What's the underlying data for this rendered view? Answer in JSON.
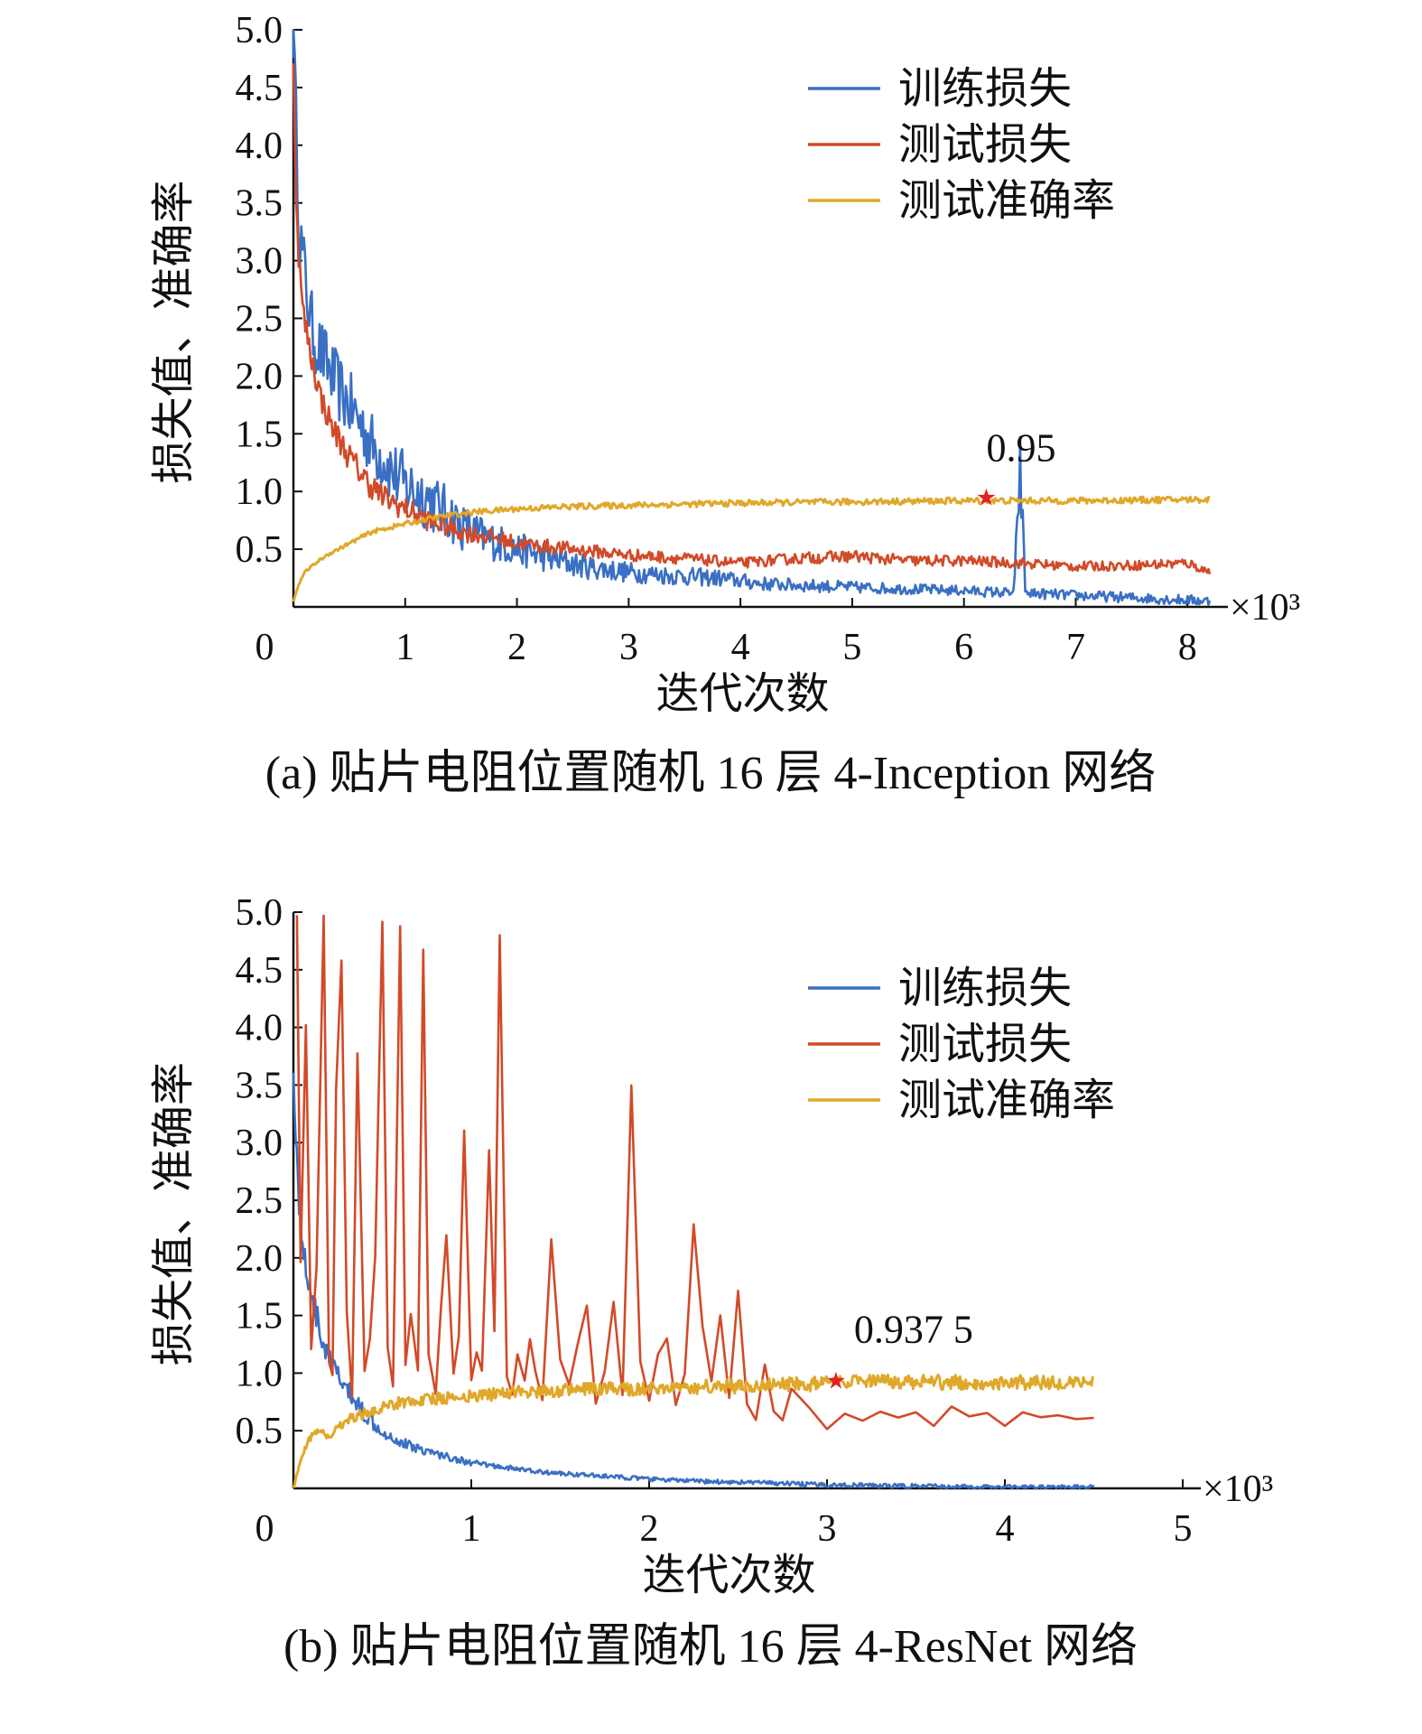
{
  "chart_data": [
    {
      "id": "a",
      "type": "line",
      "caption": "(a) 贴片电阻位置随机 16 层 4-Inception 网络",
      "xlabel": "迭代次数",
      "ylabel": "损失值、准确率",
      "x_unit_label": "×10³",
      "xlim": [
        0,
        8.2
      ],
      "ylim": [
        0,
        5.0
      ],
      "x_ticks": [
        "0",
        "1",
        "2",
        "3",
        "4",
        "5",
        "6",
        "7",
        "8"
      ],
      "y_ticks": [
        "0.5",
        "1.0",
        "1.5",
        "2.0",
        "2.5",
        "3.0",
        "3.5",
        "4.0",
        "4.5",
        "5.0"
      ],
      "legend": [
        "训练损失",
        "测试损失",
        "测试准确率"
      ],
      "annotation": {
        "text": "0.95",
        "x": 6.2,
        "y": 0.95
      },
      "series": [
        {
          "name": "训练损失",
          "color": "#3a6fc4",
          "x": [
            0,
            0.05,
            0.1,
            0.15,
            0.2,
            0.3,
            0.4,
            0.5,
            0.6,
            0.7,
            0.8,
            0.9,
            1.0,
            1.1,
            1.2,
            1.3,
            1.4,
            1.5,
            1.7,
            2.0,
            2.3,
            2.6,
            3.0,
            3.4,
            3.8,
            4.2,
            5.0,
            6.0,
            6.45,
            6.5,
            6.55,
            7.0,
            7.5,
            8.0,
            8.2
          ],
          "y": [
            5.0,
            3.3,
            2.9,
            2.5,
            2.3,
            2.1,
            1.9,
            1.75,
            1.6,
            1.4,
            1.3,
            1.15,
            1.05,
            1.0,
            0.95,
            0.85,
            0.8,
            0.7,
            0.6,
            0.5,
            0.42,
            0.35,
            0.3,
            0.27,
            0.25,
            0.2,
            0.17,
            0.14,
            0.12,
            1.25,
            0.12,
            0.1,
            0.08,
            0.06,
            0.05
          ],
          "noise": 0.3
        },
        {
          "name": "测试损失",
          "color": "#d24a28",
          "x": [
            0,
            0.03,
            0.08,
            0.15,
            0.25,
            0.35,
            0.5,
            0.65,
            0.8,
            1.0,
            1.2,
            1.5,
            1.8,
            2.0,
            2.5,
            3.0,
            3.5,
            4.0,
            4.5,
            5.0,
            5.5,
            6.0,
            6.5,
            7.0,
            7.5,
            8.0,
            8.2
          ],
          "y": [
            4.7,
            3.3,
            2.6,
            2.2,
            1.8,
            1.55,
            1.3,
            1.1,
            0.95,
            0.85,
            0.75,
            0.65,
            0.6,
            0.55,
            0.5,
            0.45,
            0.42,
            0.38,
            0.42,
            0.44,
            0.4,
            0.4,
            0.38,
            0.35,
            0.36,
            0.38,
            0.3
          ],
          "noise": 0.12
        },
        {
          "name": "测试准确率",
          "color": "#e0a82a",
          "x": [
            0,
            0.05,
            0.1,
            0.2,
            0.3,
            0.5,
            0.7,
            1.0,
            1.3,
            1.6,
            2.0,
            2.5,
            3.0,
            3.5,
            4.0,
            5.0,
            6.0,
            7.0,
            8.0,
            8.2
          ],
          "y": [
            0.05,
            0.2,
            0.3,
            0.38,
            0.45,
            0.55,
            0.65,
            0.72,
            0.78,
            0.82,
            0.85,
            0.87,
            0.88,
            0.89,
            0.9,
            0.91,
            0.92,
            0.92,
            0.93,
            0.93
          ],
          "noise": 0.03
        }
      ]
    },
    {
      "id": "b",
      "type": "line",
      "caption": "(b) 贴片电阻位置随机 16 层 4-ResNet 网络",
      "xlabel": "迭代次数",
      "ylabel": "损失值、准确率",
      "x_unit_label": "×10³",
      "xlim": [
        0,
        5
      ],
      "ylim": [
        0,
        5.0
      ],
      "x_ticks": [
        "0",
        "1",
        "2",
        "3",
        "4",
        "5"
      ],
      "y_ticks": [
        "0.5",
        "1.0",
        "1.5",
        "2.0",
        "2.5",
        "3.0",
        "3.5",
        "4.0",
        "4.5",
        "5.0"
      ],
      "legend": [
        "训练损失",
        "测试损失",
        "测试准确率"
      ],
      "annotation": {
        "text": "0.937 5",
        "x": 3.05,
        "y": 0.9375
      },
      "series": [
        {
          "name": "训练损失",
          "color": "#3a6fc4",
          "x": [
            0,
            0.03,
            0.06,
            0.1,
            0.15,
            0.2,
            0.3,
            0.4,
            0.5,
            0.6,
            0.8,
            1.0,
            1.2,
            1.4,
            1.6,
            1.8,
            2.0,
            2.3,
            2.6,
            2.8,
            3.0,
            3.5,
            4.0,
            4.5
          ],
          "y": [
            3.6,
            2.5,
            2.0,
            1.7,
            1.35,
            1.1,
            0.85,
            0.65,
            0.5,
            0.4,
            0.3,
            0.22,
            0.18,
            0.14,
            0.12,
            0.1,
            0.08,
            0.06,
            0.05,
            0.04,
            0.03,
            0.02,
            0.01,
            0.01
          ],
          "noise": 0.12
        },
        {
          "name": "测试损失",
          "color": "#d24a28",
          "x": [
            0.02,
            0.04,
            0.07,
            0.1,
            0.13,
            0.17,
            0.2,
            0.22,
            0.24,
            0.27,
            0.3,
            0.33,
            0.36,
            0.4,
            0.43,
            0.46,
            0.5,
            0.53,
            0.56,
            0.6,
            0.63,
            0.66,
            0.7,
            0.73,
            0.76,
            0.8,
            0.83,
            0.86,
            0.9,
            0.93,
            0.96,
            1.0,
            1.03,
            1.06,
            1.1,
            1.13,
            1.16,
            1.2,
            1.23,
            1.26,
            1.3,
            1.33,
            1.36,
            1.4,
            1.45,
            1.5,
            1.55,
            1.6,
            1.65,
            1.7,
            1.75,
            1.8,
            1.85,
            1.9,
            1.95,
            2.0,
            2.05,
            2.1,
            2.15,
            2.2,
            2.25,
            2.3,
            2.35,
            2.4,
            2.45,
            2.5,
            2.55,
            2.6,
            2.65,
            2.7,
            2.75,
            2.8,
            2.9,
            3.0,
            3.1,
            3.2,
            3.3,
            3.4,
            3.5,
            3.6,
            3.7,
            3.8,
            3.9,
            4.0,
            4.1,
            4.2,
            4.3,
            4.4,
            4.5
          ],
          "y": [
            5.0,
            2.0,
            4.0,
            1.2,
            1.9,
            5.0,
            1.1,
            1.0,
            3.5,
            4.6,
            1.5,
            0.8,
            3.8,
            1.0,
            1.3,
            2.0,
            4.9,
            1.2,
            0.9,
            4.9,
            1.1,
            1.5,
            1.0,
            4.7,
            1.2,
            0.8,
            1.6,
            2.2,
            1.0,
            1.3,
            3.1,
            0.9,
            1.2,
            1.0,
            2.9,
            1.4,
            4.8,
            1.0,
            0.8,
            1.2,
            0.9,
            1.3,
            1.0,
            0.8,
            2.2,
            1.1,
            0.9,
            1.3,
            1.6,
            0.7,
            1.0,
            1.6,
            0.8,
            3.5,
            1.1,
            0.8,
            1.2,
            1.3,
            0.7,
            1.0,
            2.3,
            1.4,
            0.9,
            1.5,
            0.8,
            1.7,
            0.7,
            0.6,
            1.1,
            0.7,
            0.6,
            0.9,
            0.7,
            0.5,
            0.65,
            0.6,
            0.7,
            0.62,
            0.66,
            0.58,
            0.68,
            0.6,
            0.64,
            0.55,
            0.66,
            0.6,
            0.64,
            0.6,
            0.62
          ],
          "noise": 0.04
        },
        {
          "name": "测试准确率",
          "color": "#e0a82a",
          "x": [
            0,
            0.05,
            0.1,
            0.15,
            0.2,
            0.3,
            0.4,
            0.5,
            0.6,
            0.8,
            1.0,
            1.2,
            1.5,
            1.8,
            2.0,
            2.3,
            2.6,
            2.8,
            3.0,
            3.2,
            3.5,
            4.0,
            4.5
          ],
          "y": [
            0.0,
            0.3,
            0.45,
            0.5,
            0.45,
            0.6,
            0.65,
            0.7,
            0.75,
            0.78,
            0.8,
            0.83,
            0.85,
            0.86,
            0.87,
            0.88,
            0.89,
            0.9,
            0.91,
            0.92,
            0.92,
            0.92,
            0.92
          ],
          "noise": 0.07
        }
      ]
    }
  ]
}
